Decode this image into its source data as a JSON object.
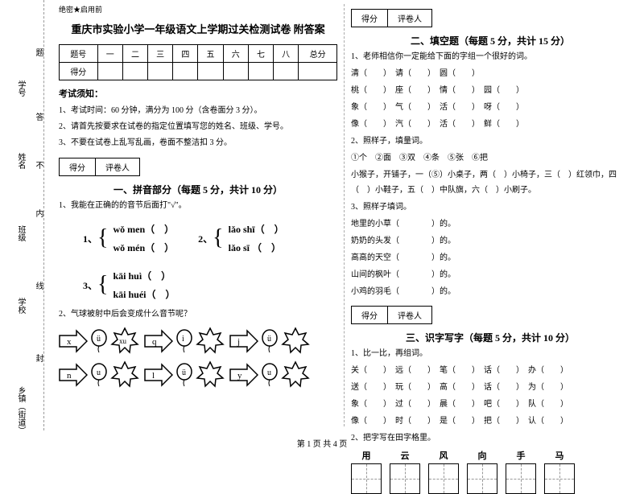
{
  "margin": {
    "l1": "乡镇（街道）",
    "l2": "学校",
    "l3": "班级",
    "l4": "姓名",
    "l5": "学号",
    "d1": "封",
    "d2": "线",
    "d3": "内",
    "d4": "不",
    "d5": "答",
    "d6": "题"
  },
  "header": {
    "secret": "绝密★启用前",
    "title": "重庆市实验小学一年级语文上学期过关检测试卷 附答案"
  },
  "scoreTable": {
    "cols": [
      "题号",
      "一",
      "二",
      "三",
      "四",
      "五",
      "六",
      "七",
      "八",
      "总分"
    ],
    "row2": "得分"
  },
  "notice": {
    "title": "考试须知：",
    "i1": "1、考试时间：60 分钟，满分为 100 分（含卷面分 3 分）。",
    "i2": "2、请首先按要求在试卷的指定位置填写您的姓名、班级、学号。",
    "i3": "3、不要在试卷上乱写乱画，卷面不整洁扣 3 分。"
  },
  "scorebox": {
    "a": "得分",
    "b": "评卷人"
  },
  "sec1": {
    "title": "一、拼音部分（每题 5 分，共计 10 分）",
    "q1": "1、我能在正确的的音节后面打\"√\"。",
    "p1a": "1、",
    "p1b": "wǒ  men（　）",
    "p1c": "wǒ  mén（　）",
    "p2a": "2、",
    "p2b": "lǎo  shī（　）",
    "p2c": "lǎo  sī （　）",
    "p3a": "3、",
    "p3b": "kāi  huì（　）",
    "p3c": "kāi  huéi（　）",
    "q2": "2、气球被射中后会变成什么音节呢？",
    "letters": [
      "x",
      "q",
      "j",
      "n",
      "l",
      "y"
    ],
    "balloon": [
      "ü",
      "i",
      "ü",
      "u",
      "ü",
      "u"
    ],
    "stars": [
      "xu",
      "",
      "",
      "",
      "",
      ""
    ]
  },
  "sec2": {
    "title": "二、填空题（每题 5 分，共计 15 分）",
    "q1": "1、老师相信你一定能给下面的字组一个很好的词。",
    "l1": "清（　　）　请（　　）　圆（　　）",
    "l2": "桃（　　）　座（　　）　情（　　）　园（　　）",
    "l3": "象（　　）　气（　　）　活（　　）　呀（　　）",
    "l4": "像（　　）　汽（　　）　活（　　）　鲜（　　）",
    "q2": "2、照样子，填量词。",
    "q2a": "①个　②面　③双　④条　⑤张　⑥把",
    "q2b": "小猴子，开铺子，一（⑤）小桌子，两（　）小椅子，三（　）红领巾，四（　）小鞋子，五（　）中队旗，六（　）小刷子。",
    "q3": "3、照样子填词。",
    "q3a": "地里的小草（　　　　）的。",
    "q3b": "奶奶的头发（　　　　）的。",
    "q3c": "高高的天空（　　　　）的。",
    "q3d": "山间的枫叶（　　　　）的。",
    "q3e": "小鸡的羽毛（　　　　）的。"
  },
  "sec3": {
    "title": "三、识字写字（每题 5 分，共计 10 分）",
    "q1": "1、比一比，再组词。",
    "l1": "关（　　）　远（　　）　笔（　　）　话（　　）　办（　　）",
    "l2": "送（　　）　玩（　　）　高（　　）　话（　　）　为（　　）",
    "l3": "象（　　）　过（　　）　晨（　　）　吧（　　）　队（　　）",
    "l4": "像（　　）　时（　　）　是（　　）　把（　　）　认（　　）",
    "q2": "2、把字写在田字格里。",
    "chars": [
      "用",
      "云",
      "风",
      "向",
      "手",
      "马"
    ]
  },
  "footer": "第 1 页 共 4 页"
}
